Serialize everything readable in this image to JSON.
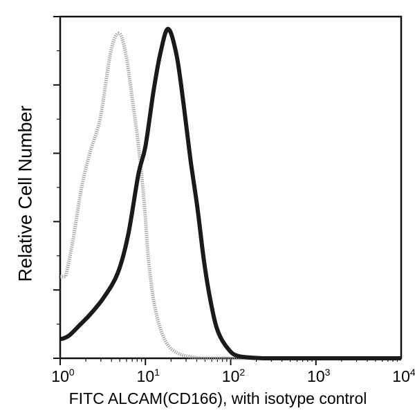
{
  "chart_data": {
    "type": "line",
    "title": "",
    "xlabel": "FITC ALCAM(CD166), with isotype control",
    "ylabel": "Relative Cell Number",
    "x_scale": "log",
    "xlim": [
      1,
      10000
    ],
    "ylim": [
      0,
      100
    ],
    "x_ticks": [
      {
        "base": "10",
        "exp": "0",
        "value": 1
      },
      {
        "base": "10",
        "exp": "1",
        "value": 10
      },
      {
        "base": "10",
        "exp": "2",
        "value": 100
      },
      {
        "base": "10",
        "exp": "3",
        "value": 1000
      },
      {
        "base": "10",
        "exp": "4",
        "value": 10000
      }
    ],
    "y_ticks_unlabeled": 5,
    "grid": false,
    "legend": null,
    "series": [
      {
        "name": "Isotype control",
        "color": "#9a9a9a",
        "style": "stippled",
        "x": [
          1.16,
          1.4,
          1.79,
          2.24,
          2.96,
          3.92,
          4.91,
          5.92,
          7.14,
          8.29,
          9.63,
          10.97,
          13.2,
          17.5,
          25.4,
          44.6
        ],
        "y": [
          23.9,
          34.0,
          50.2,
          60.3,
          70.4,
          89.7,
          95.1,
          88.7,
          74.5,
          62.3,
          46.2,
          27.9,
          13.8,
          4.7,
          1.2,
          0
        ]
      },
      {
        "name": "ALCAM(CD166)",
        "color": "#1a1a1a",
        "style": "solid",
        "x": [
          1.06,
          1.28,
          1.69,
          2.24,
          3.25,
          4.73,
          6.26,
          8.29,
          10.0,
          12.5,
          15.1,
          18.5,
          23.2,
          28.0,
          33.7,
          40.7,
          49.0,
          59.1,
          71.3,
          94.5,
          125,
          240
        ],
        "y": [
          5.7,
          6.7,
          9.7,
          12.8,
          17.8,
          24.9,
          36.0,
          54.0,
          62.0,
          78.5,
          89.7,
          96.4,
          88.7,
          74.5,
          58.3,
          44.1,
          27.9,
          15.8,
          7.7,
          2.6,
          0.6,
          0
        ]
      }
    ]
  },
  "footer": {
    "cut_off_text": "…"
  }
}
